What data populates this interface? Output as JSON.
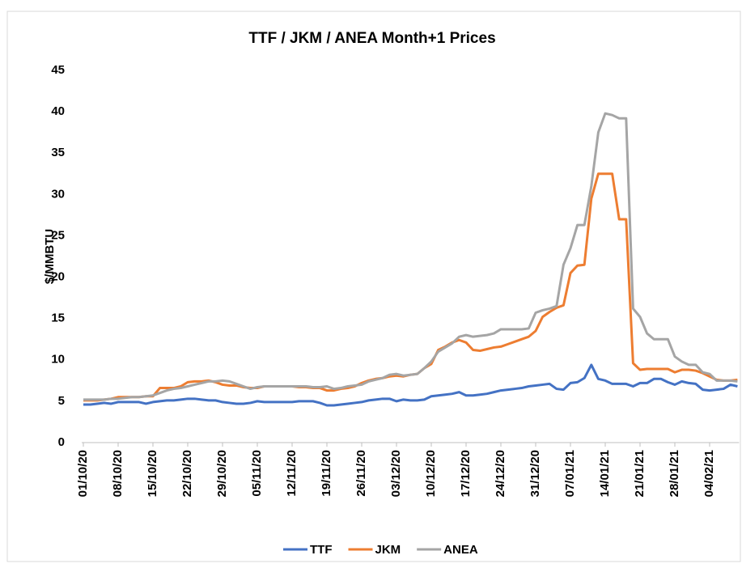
{
  "chart_data": {
    "type": "line",
    "title": "TTF / JKM / ANEA Month+1 Prices",
    "y_label": "$/MMBTU",
    "categories": [
      "01/10/20",
      null,
      null,
      null,
      null,
      "08/10/20",
      null,
      null,
      null,
      null,
      "15/10/20",
      null,
      null,
      null,
      null,
      "22/10/20",
      null,
      null,
      null,
      null,
      "29/10/20",
      null,
      null,
      null,
      null,
      "05/11/20",
      null,
      null,
      null,
      null,
      "12/11/20",
      null,
      null,
      null,
      null,
      "19/11/20",
      null,
      null,
      null,
      null,
      "26/11/20",
      null,
      null,
      null,
      null,
      "03/12/20",
      null,
      null,
      null,
      null,
      "10/12/20",
      null,
      null,
      null,
      null,
      "17/12/20",
      null,
      null,
      null,
      null,
      "24/12/20",
      null,
      null,
      null,
      null,
      "31/12/20",
      null,
      null,
      null,
      null,
      "07/01/21",
      null,
      null,
      null,
      null,
      "14/01/21",
      null,
      null,
      null,
      null,
      "21/01/21",
      null,
      null,
      null,
      null,
      "28/01/21",
      null,
      null,
      null,
      null,
      "04/02/21",
      null,
      null,
      null,
      null
    ],
    "series": [
      {
        "name": "TTF",
        "color": "#4472c4",
        "values": [
          4.6,
          4.6,
          4.7,
          4.8,
          4.7,
          4.9,
          4.9,
          4.9,
          4.9,
          4.7,
          4.9,
          5.0,
          5.1,
          5.1,
          5.2,
          5.3,
          5.3,
          5.2,
          5.1,
          5.1,
          4.9,
          4.8,
          4.7,
          4.7,
          4.8,
          5.0,
          4.9,
          4.9,
          4.9,
          4.9,
          4.9,
          5.0,
          5.0,
          5.0,
          4.8,
          4.5,
          4.5,
          4.6,
          4.7,
          4.8,
          4.9,
          5.1,
          5.2,
          5.3,
          5.3,
          5.0,
          5.2,
          5.1,
          5.1,
          5.2,
          5.6,
          5.7,
          5.8,
          5.9,
          6.1,
          5.7,
          5.7,
          5.8,
          5.9,
          6.1,
          6.3,
          6.4,
          6.5,
          6.6,
          6.8,
          6.9,
          7.0,
          7.1,
          6.5,
          6.4,
          7.2,
          7.3,
          7.8,
          9.4,
          7.7,
          7.5,
          7.1,
          7.1,
          7.1,
          6.8,
          7.2,
          7.2,
          7.7,
          7.7,
          7.3,
          7.0,
          7.4,
          7.2,
          7.1,
          6.4,
          6.3,
          6.4,
          6.5,
          7.0,
          6.8
        ]
      },
      {
        "name": "JKM",
        "color": "#ed7d31",
        "values": [
          5.1,
          5.1,
          5.1,
          5.2,
          5.3,
          5.5,
          5.5,
          5.5,
          5.5,
          5.6,
          5.6,
          6.6,
          6.6,
          6.6,
          6.8,
          7.3,
          7.4,
          7.4,
          7.5,
          7.3,
          7.0,
          6.9,
          6.9,
          6.7,
          6.6,
          6.6,
          6.8,
          6.8,
          6.8,
          6.8,
          6.8,
          6.7,
          6.7,
          6.6,
          6.6,
          6.3,
          6.3,
          6.5,
          6.6,
          6.8,
          7.2,
          7.5,
          7.7,
          7.8,
          8.0,
          8.1,
          8.0,
          8.2,
          8.3,
          9.0,
          9.5,
          11.2,
          11.6,
          12.1,
          12.4,
          12.1,
          11.2,
          11.1,
          11.3,
          11.5,
          11.6,
          11.9,
          12.2,
          12.5,
          12.8,
          13.5,
          15.2,
          15.8,
          16.3,
          16.6,
          20.5,
          21.4,
          21.5,
          29.5,
          32.5,
          32.5,
          32.5,
          27.0,
          27.0,
          9.6,
          8.8,
          8.9,
          8.9,
          8.9,
          8.9,
          8.5,
          8.8,
          8.8,
          8.7,
          8.4,
          8.0,
          7.6,
          7.5,
          7.5,
          7.6
        ]
      },
      {
        "name": "ANEA",
        "color": "#a5a5a5",
        "values": [
          5.2,
          5.2,
          5.2,
          5.2,
          5.3,
          5.3,
          5.4,
          5.5,
          5.5,
          5.6,
          5.7,
          6.0,
          6.3,
          6.5,
          6.6,
          6.8,
          7.0,
          7.2,
          7.4,
          7.4,
          7.5,
          7.4,
          7.1,
          6.8,
          6.5,
          6.7,
          6.8,
          6.8,
          6.8,
          6.8,
          6.8,
          6.8,
          6.8,
          6.7,
          6.7,
          6.8,
          6.5,
          6.6,
          6.8,
          6.9,
          7.0,
          7.4,
          7.6,
          7.8,
          8.2,
          8.3,
          8.1,
          8.2,
          8.3,
          9.0,
          9.8,
          11.0,
          11.5,
          12.0,
          12.8,
          13.0,
          12.8,
          12.9,
          13.0,
          13.2,
          13.7,
          13.7,
          13.7,
          13.7,
          13.8,
          15.7,
          16.0,
          16.2,
          16.5,
          21.5,
          23.5,
          26.3,
          26.3,
          31.0,
          37.5,
          39.8,
          39.6,
          39.2,
          39.2,
          16.2,
          15.2,
          13.2,
          12.5,
          12.5,
          12.5,
          10.4,
          9.8,
          9.4,
          9.4,
          8.5,
          8.3,
          7.5,
          7.5,
          7.5,
          7.4
        ]
      }
    ],
    "ylim": [
      0,
      45
    ],
    "yticks": [
      0,
      5,
      10,
      15,
      20,
      25,
      30,
      35,
      40,
      45
    ],
    "grid": false,
    "legend": "bottom"
  }
}
